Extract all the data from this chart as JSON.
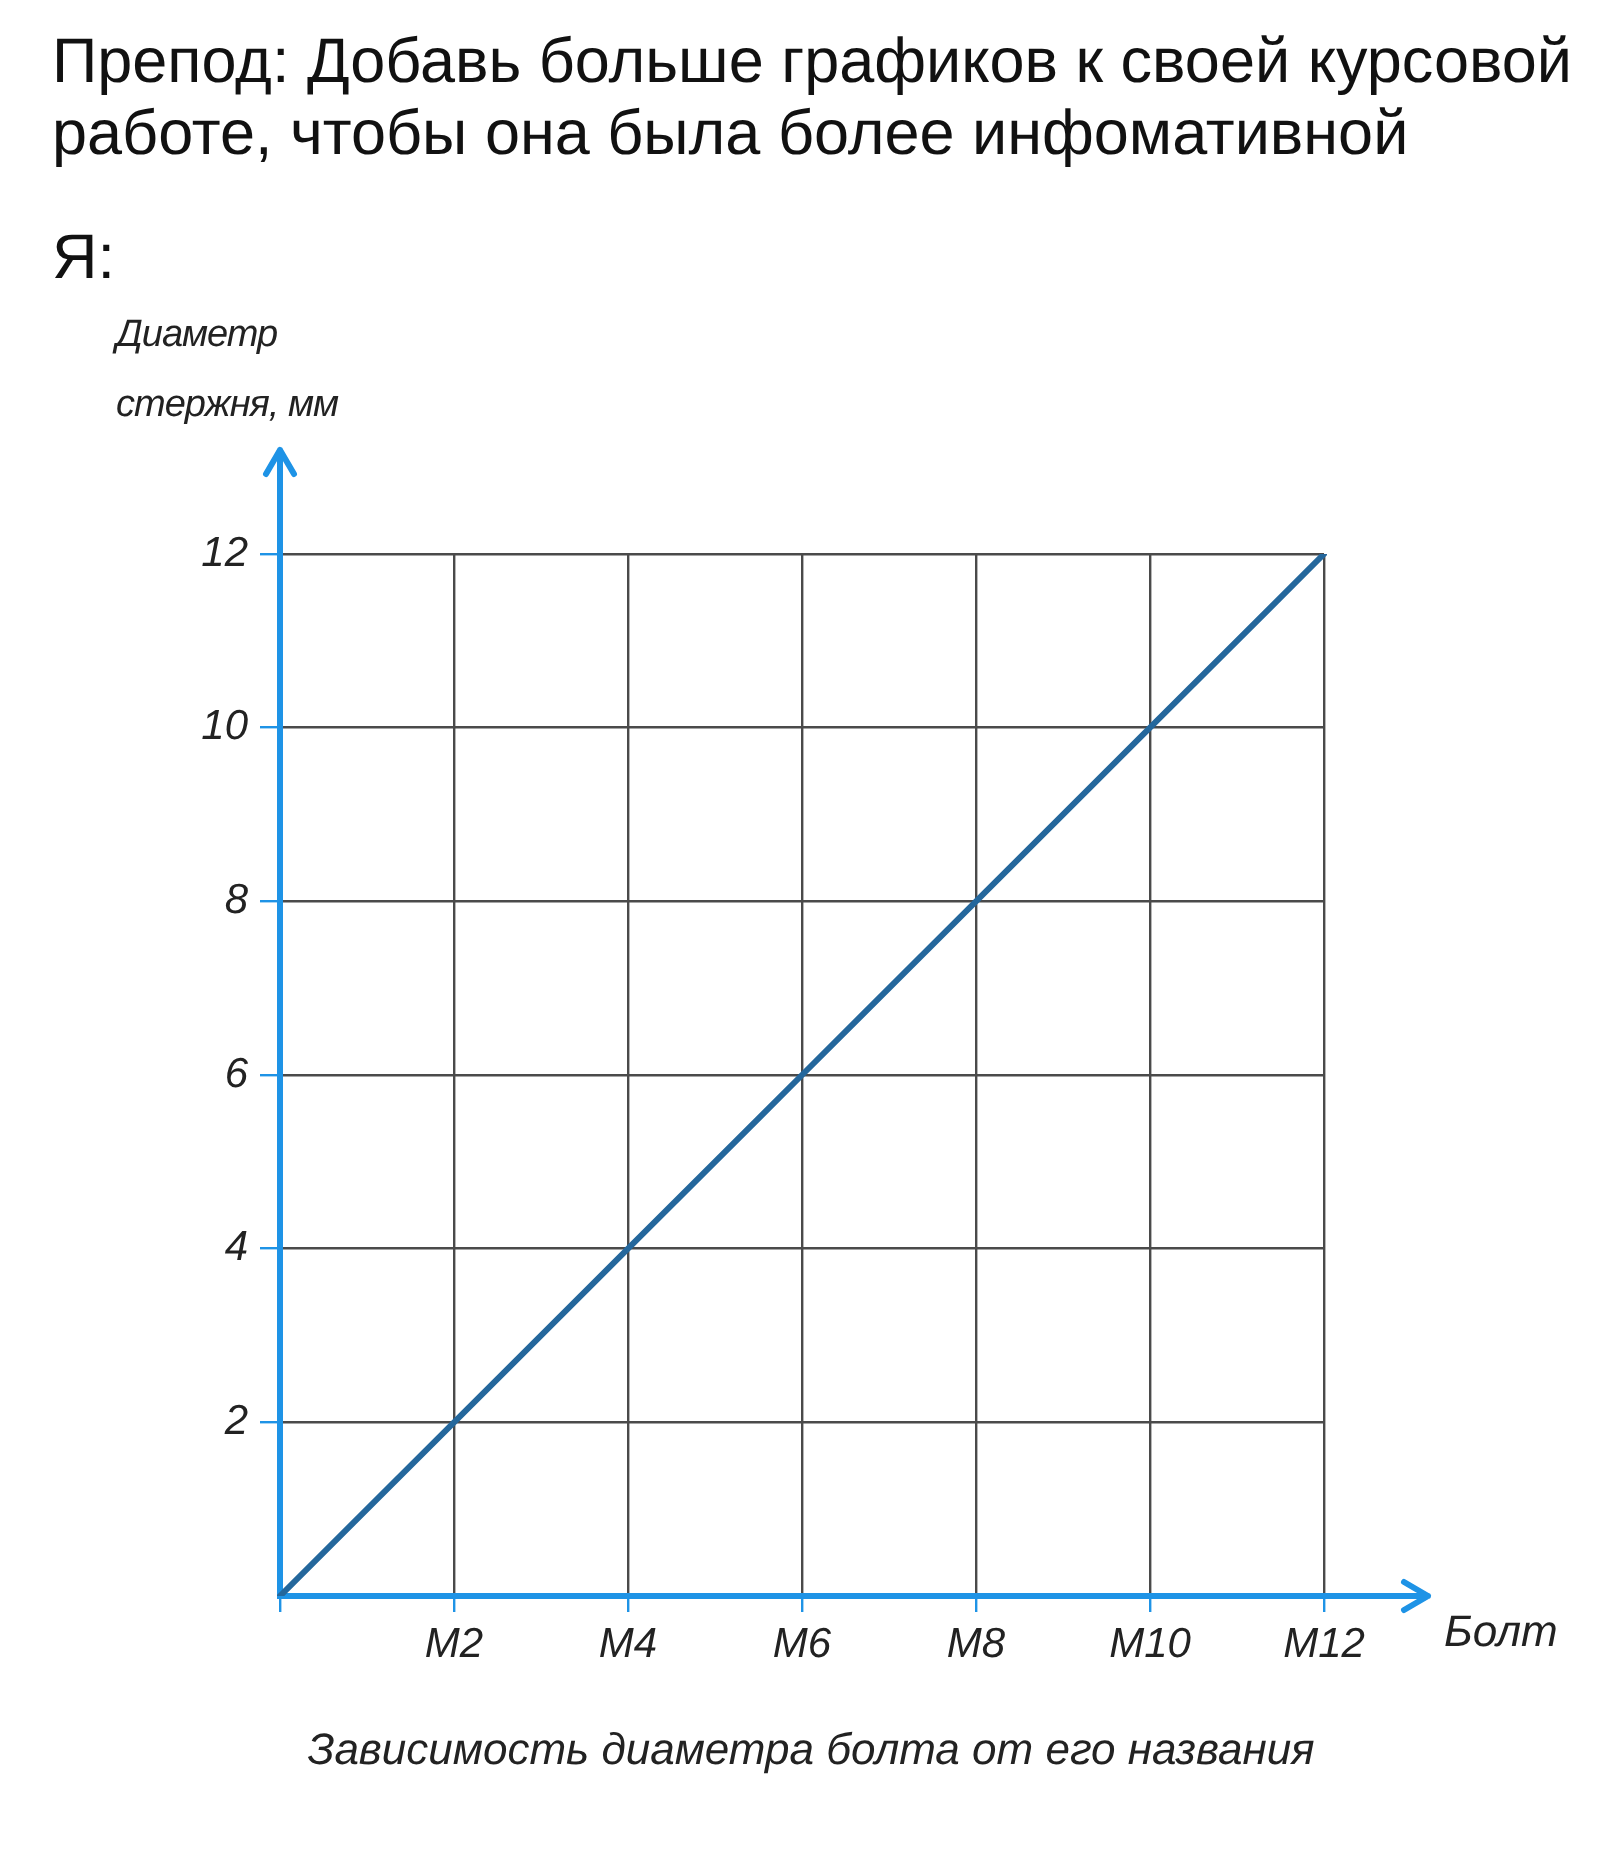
{
  "chart_data": {
    "type": "line",
    "title": "Препод: Добавь больше графиков к своей курсовой работе, чтобы она была более инфомативной",
    "subtitle": "Я:",
    "ylabel": "Диаметр стержня, мм",
    "xlabel": "Болт",
    "annotations": [
      "Зависимость диаметра болта от его названия"
    ],
    "categories": [
      null,
      "M2",
      "M4",
      "M6",
      "M8",
      "M10",
      "M12"
    ],
    "series": [
      {
        "color": "#24679c",
        "values": [
          0,
          2,
          4,
          6,
          8,
          10,
          12
        ]
      }
    ],
    "ylim": [
      0,
      12
    ],
    "yticks": [
      2,
      4,
      6,
      8,
      10,
      12
    ],
    "grid": true,
    "marker": "none",
    "line_style": "solid"
  }
}
